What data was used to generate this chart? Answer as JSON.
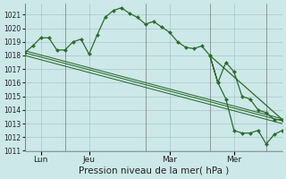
{
  "bg_color": "#cce8e8",
  "grid_color": "#9fbfbf",
  "line_color": "#2d6a2d",
  "xlabel": "Pression niveau de la mer( hPa )",
  "ylim": [
    1011,
    1021.8
  ],
  "yticks": [
    1011,
    1012,
    1013,
    1014,
    1015,
    1016,
    1017,
    1018,
    1019,
    1020,
    1021
  ],
  "xlim": [
    0,
    288
  ],
  "xtick_positions": [
    18,
    72,
    162,
    234
  ],
  "xtick_labels": [
    "Lun",
    "Jeu",
    "Mar",
    "Mer"
  ],
  "vline_positions": [
    0,
    45,
    135,
    207,
    270
  ],
  "main_x": [
    0,
    9,
    18,
    27,
    36,
    45,
    54,
    63,
    72,
    81,
    90,
    99,
    108,
    117,
    126,
    135,
    144,
    153,
    162,
    171,
    180,
    189,
    198,
    207,
    216,
    225,
    234,
    243,
    252,
    261,
    270,
    279,
    288
  ],
  "main_y": [
    1018.2,
    1018.7,
    1019.3,
    1019.3,
    1018.4,
    1018.4,
    1019.0,
    1019.2,
    1018.1,
    1019.5,
    1020.8,
    1021.3,
    1021.5,
    1021.1,
    1020.8,
    1020.3,
    1020.5,
    1020.1,
    1019.7,
    1019.0,
    1018.6,
    1018.5,
    1018.7,
    1018.0,
    1016.0,
    1017.5,
    1016.8,
    1015.0,
    1014.8,
    1014.0,
    1013.8,
    1013.3,
    1013.3
  ],
  "main_x2": [
    207,
    216,
    225,
    234,
    243,
    252,
    261,
    270,
    279,
    288
  ],
  "main_y2": [
    1018.0,
    1016.0,
    1014.8,
    1012.5,
    1012.3,
    1012.3,
    1012.5,
    1011.5,
    1012.2,
    1012.5
  ],
  "trend_lines": [
    [
      1018.2,
      1013.2
    ],
    [
      1018.0,
      1013.0
    ],
    [
      1018.35,
      1013.35
    ]
  ]
}
